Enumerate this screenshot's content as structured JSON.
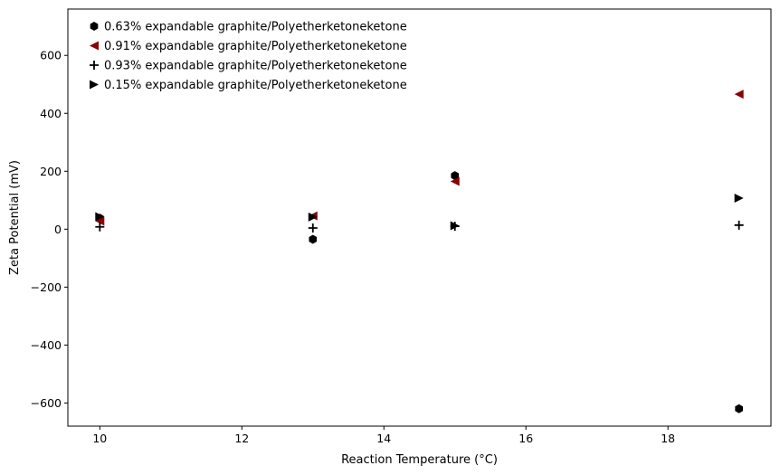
{
  "chart_data": {
    "type": "scatter",
    "title": "",
    "xlabel": "Reaction Temperature (°C)",
    "ylabel": "Zeta Potential (mV)",
    "xlim": [
      9.55,
      19.45
    ],
    "ylim": [
      -680,
      760
    ],
    "xticks": [
      10,
      12,
      14,
      16,
      18
    ],
    "yticks": [
      -600,
      -400,
      -200,
      0,
      200,
      400,
      600
    ],
    "xtick_labels": [
      "10",
      "12",
      "14",
      "16",
      "18"
    ],
    "ytick_labels": [
      "−600",
      "−400",
      "−200",
      "0",
      "200",
      "400",
      "600"
    ],
    "grid": false,
    "legend_position": "top-left",
    "series": [
      {
        "name": "0.63% expandable graphite/Polyetherketoneketone",
        "marker": "hexagon",
        "color": "#000000",
        "x": [
          10,
          13,
          15,
          19
        ],
        "y": [
          38,
          -35,
          185,
          -620
        ]
      },
      {
        "name": "0.91% expandable graphite/Polyetherketoneketone",
        "marker": "triangle-left",
        "color": "#8b0000",
        "x": [
          10,
          13,
          15,
          19
        ],
        "y": [
          28,
          46,
          165,
          466
        ]
      },
      {
        "name": "0.93% expandable graphite/Polyetherketoneketone",
        "marker": "plus",
        "color": "#000000",
        "x": [
          10,
          13,
          15,
          19
        ],
        "y": [
          8,
          4,
          10,
          14
        ]
      },
      {
        "name": "0.15% expandable graphite/Polyetherketoneketone",
        "marker": "triangle-right",
        "color": "#000000",
        "x": [
          10,
          13,
          15,
          19
        ],
        "y": [
          43,
          42,
          12,
          107
        ]
      }
    ]
  }
}
